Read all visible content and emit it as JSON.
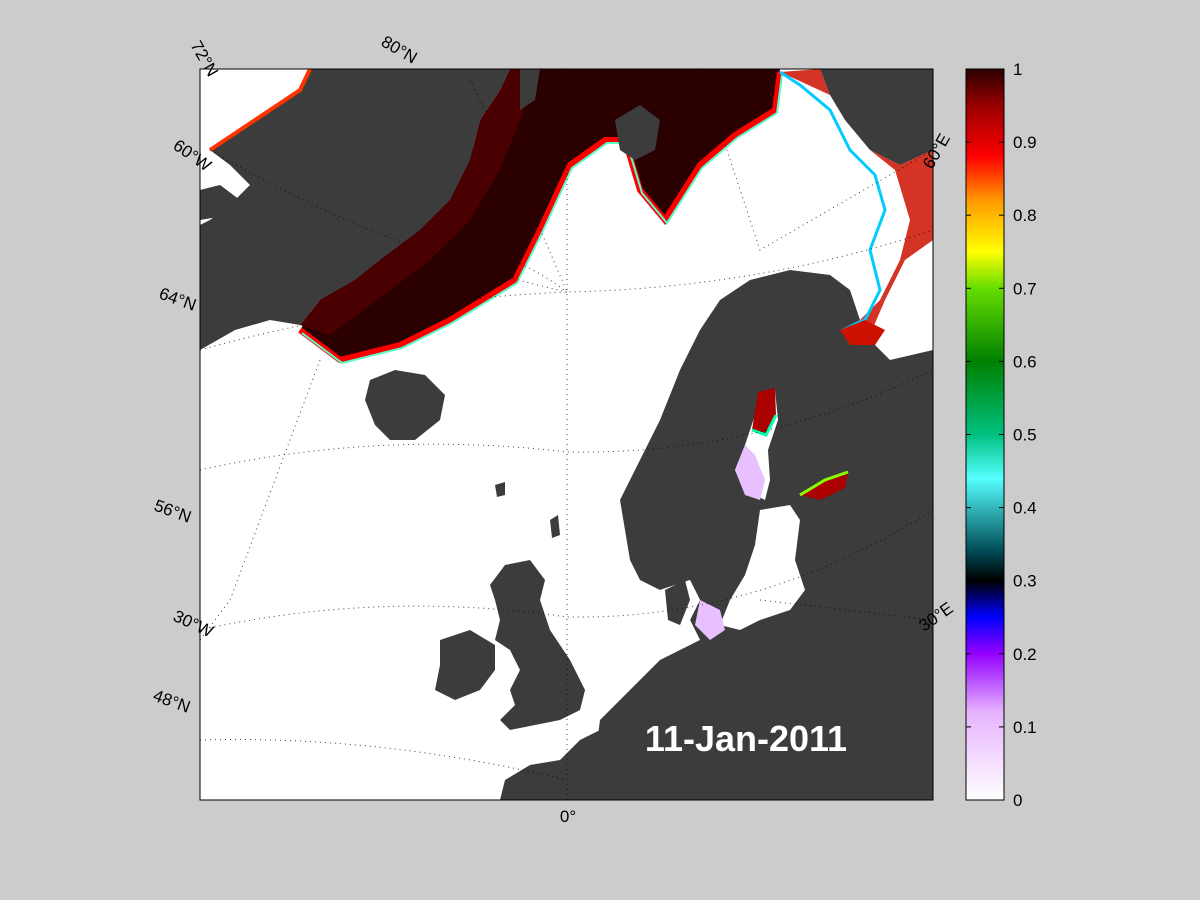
{
  "map": {
    "date_label": "11-Jan-2011",
    "colors": {
      "background": "#cccccc",
      "ocean": "#ffffff",
      "land": "#3c3c3c",
      "lake": "#808080",
      "ice_high": "#2a0000"
    },
    "graticule_labels": {
      "lat": [
        "72°N",
        "80°N",
        "64°N",
        "56°N",
        "48°N"
      ],
      "lon": [
        "60°W",
        "30°W",
        "0°",
        "30°E",
        "60°E"
      ]
    }
  },
  "colorbar": {
    "min": 0,
    "max": 1,
    "ticks": [
      "0",
      "0.1",
      "0.2",
      "0.3",
      "0.4",
      "0.5",
      "0.6",
      "0.7",
      "0.8",
      "0.9",
      "1"
    ],
    "stops": [
      {
        "value": 0.0,
        "color": "#ffffff"
      },
      {
        "value": 0.12,
        "color": "#e6b3ff"
      },
      {
        "value": 0.2,
        "color": "#9400ff"
      },
      {
        "value": 0.25,
        "color": "#0000ff"
      },
      {
        "value": 0.3,
        "color": "#000000"
      },
      {
        "value": 0.34,
        "color": "#004a55"
      },
      {
        "value": 0.44,
        "color": "#55ffff"
      },
      {
        "value": 0.5,
        "color": "#00c080"
      },
      {
        "value": 0.6,
        "color": "#008000"
      },
      {
        "value": 0.7,
        "color": "#66dd00"
      },
      {
        "value": 0.75,
        "color": "#ffff00"
      },
      {
        "value": 0.82,
        "color": "#ff9900"
      },
      {
        "value": 0.88,
        "color": "#ff0000"
      },
      {
        "value": 0.95,
        "color": "#990000"
      },
      {
        "value": 1.0,
        "color": "#2a0000"
      }
    ]
  }
}
